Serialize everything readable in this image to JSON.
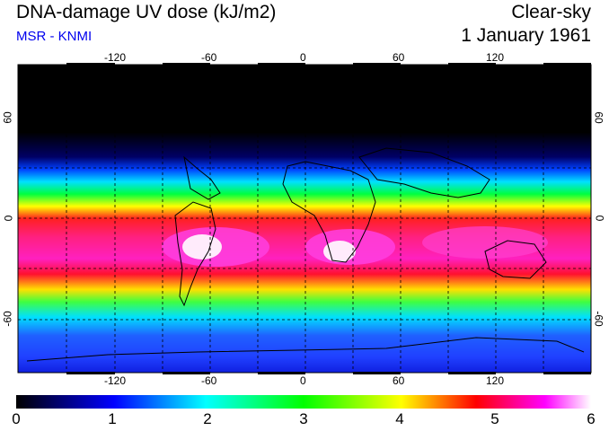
{
  "header": {
    "title": "DNA-damage UV dose (kJ/m2)",
    "subtitle": "MSR - KNMI",
    "sky_condition": "Clear-sky",
    "date": "1 January 1961"
  },
  "map": {
    "longitude_ticks": [
      "-120",
      "-60",
      "0",
      "60",
      "120"
    ],
    "latitude_ticks_left": [
      "60",
      "0",
      "-60"
    ],
    "latitude_ticks_right": [
      "60",
      "0",
      "-60"
    ],
    "lon_range": [
      -180,
      180
    ],
    "lat_range": [
      -90,
      90
    ]
  },
  "colorbar": {
    "labels": [
      "0",
      "1",
      "2",
      "3",
      "4",
      "5",
      "6"
    ],
    "min": 0,
    "max": 6,
    "colors": [
      "#000000",
      "#0000ff",
      "#00ffff",
      "#00ff00",
      "#ffff00",
      "#ff0000",
      "#ff00ff",
      "#ffffff"
    ]
  }
}
